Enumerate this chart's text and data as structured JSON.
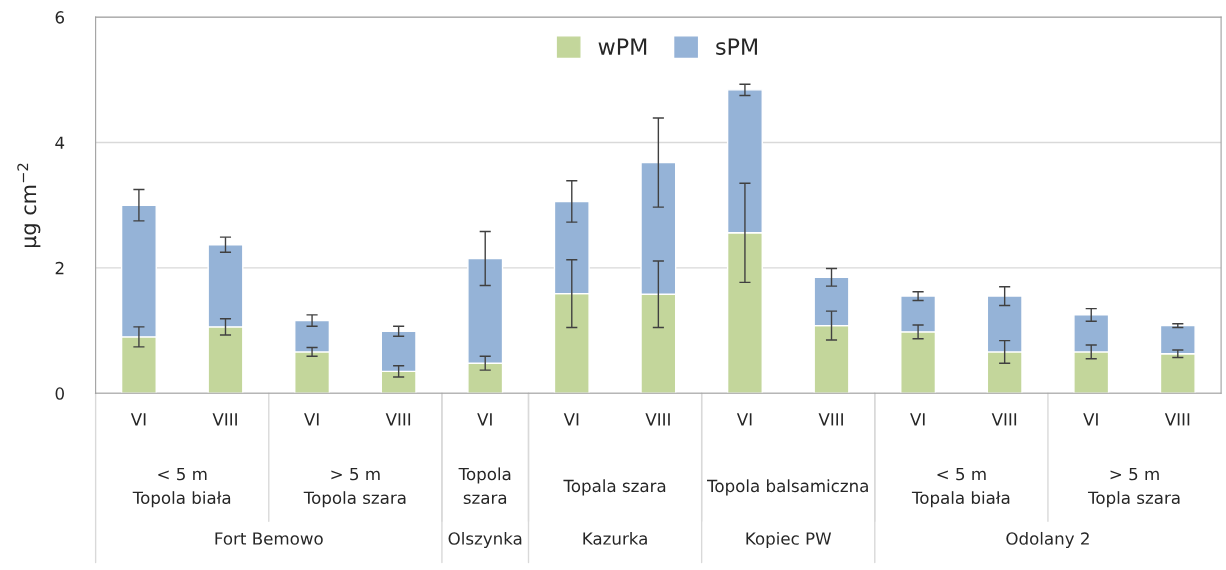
{
  "chart_data": {
    "type": "bar",
    "stacked": true,
    "ylabel": "µg cm$^{−2}$",
    "categories": [
      "VI",
      "VIII",
      "VI",
      "VIII",
      "VI",
      "VI",
      "VIII",
      "VI",
      "VIII",
      "VI",
      "VIII",
      "VI",
      "VIII"
    ],
    "series": [
      {
        "name": "wPM",
        "color": "#c3d69b",
        "values": [
          0.9,
          1.06,
          0.66,
          0.35,
          0.48,
          1.59,
          1.58,
          2.56,
          1.08,
          0.98,
          0.66,
          0.66,
          0.63
        ],
        "errors": [
          0.16,
          0.13,
          0.07,
          0.09,
          0.11,
          0.54,
          0.53,
          0.79,
          0.23,
          0.11,
          0.18,
          0.11,
          0.06
        ]
      },
      {
        "name": "sPM",
        "color": "#95b3d7",
        "values": [
          2.1,
          1.31,
          0.5,
          0.64,
          1.67,
          1.47,
          2.1,
          2.28,
          0.77,
          0.57,
          0.89,
          0.59,
          0.45
        ],
        "errors": [
          0.25,
          0.12,
          0.09,
          0.08,
          0.43,
          0.33,
          0.71,
          0.09,
          0.14,
          0.07,
          0.15,
          0.1,
          0.03
        ]
      }
    ],
    "ylim": [
      0,
      6
    ],
    "yticks": [
      0,
      2,
      4,
      6
    ],
    "grid": "y",
    "legend": "top",
    "annotations": [
      "< 5 m\nTopola biała",
      "> 5 m\nTopola szara",
      "Topola\nszara",
      "Topala szara",
      "Topola balsamiczna",
      "< 5 m\nTopala biała",
      "> 5 m\nTopla szara",
      "Fort Bemowo",
      "Olszynka",
      "Kazurka",
      "Kopiec PW",
      "Odolany 2"
    ]
  }
}
